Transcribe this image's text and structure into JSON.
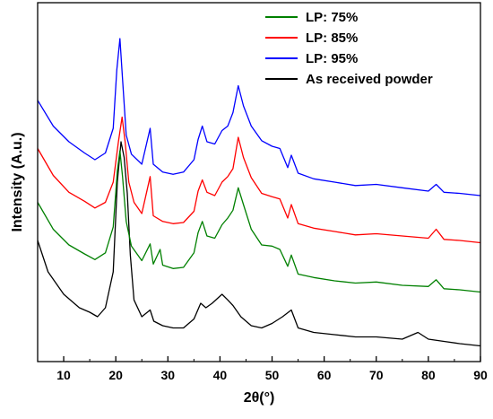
{
  "chart_data": {
    "type": "line",
    "title": "",
    "xlabel": "2θ(°)",
    "ylabel": "Intensity (A.u.)",
    "xlim": [
      5,
      90
    ],
    "xticks": [
      10,
      20,
      30,
      40,
      50,
      60,
      70,
      80,
      90
    ],
    "y_tick_labels_shown": false,
    "grid": false,
    "legend_position": "top-right",
    "series": [
      {
        "name": "LP: 75%",
        "color": "#008000",
        "x": [
          5,
          8,
          11,
          14,
          16,
          18,
          19.5,
          20.3,
          20.8,
          21.3,
          22,
          23,
          25,
          26.6,
          27.2,
          28.5,
          29,
          31,
          33,
          35,
          35.8,
          36.6,
          37.5,
          39,
          40.4,
          41.5,
          42.5,
          43.5,
          44.5,
          46,
          48,
          50,
          51.5,
          53,
          53.7,
          55,
          58,
          62,
          66,
          70,
          75,
          80,
          81.5,
          83,
          86,
          90
        ],
        "y": [
          142,
          118,
          104,
          96,
          91,
          97,
          120,
          170,
          188,
          165,
          125,
          103,
          90,
          105,
          87,
          100,
          86,
          83,
          84,
          97,
          115,
          125,
          112,
          110,
          122,
          128,
          135,
          155,
          140,
          118,
          104,
          103,
          100,
          85,
          95,
          78,
          75,
          72,
          70,
          71,
          68,
          67,
          73,
          65,
          64,
          62
        ]
      },
      {
        "name": "LP: 85%",
        "color": "#ff0000",
        "x": [
          5,
          8,
          11,
          14,
          16,
          18,
          19.5,
          20.5,
          21.2,
          21.8,
          22.5,
          23.5,
          25,
          26.6,
          27.2,
          29,
          31,
          33,
          35,
          35.8,
          36.6,
          37.5,
          39,
          40.4,
          41.5,
          42.5,
          43.5,
          44.5,
          46,
          48,
          50,
          51.5,
          53,
          53.7,
          55,
          58,
          62,
          66,
          70,
          75,
          80,
          81.5,
          83,
          86,
          90
        ],
        "y": [
          190,
          166,
          151,
          143,
          137,
          142,
          160,
          196,
          218,
          196,
          160,
          142,
          132,
          165,
          130,
          125,
          123,
          124,
          134,
          152,
          162,
          151,
          148,
          160,
          165,
          172,
          200,
          182,
          164,
          150,
          147,
          145,
          128,
          140,
          123,
          119,
          116,
          113,
          114,
          112,
          110,
          118,
          109,
          108,
          106
        ]
      },
      {
        "name": "LP: 95%",
        "color": "#0000ff",
        "x": [
          5,
          8,
          11,
          14,
          16,
          18,
          19.5,
          20.2,
          20.8,
          21.3,
          22,
          23,
          25,
          26.6,
          27.2,
          29,
          31,
          33,
          35,
          35.8,
          36.6,
          37.5,
          39,
          40.4,
          41.5,
          42.5,
          43.5,
          44.5,
          46,
          48,
          50,
          51.5,
          53,
          53.7,
          55,
          58,
          62,
          66,
          70,
          75,
          80,
          81.5,
          83,
          86,
          90
        ],
        "y": [
          233,
          210,
          196,
          186,
          180,
          186,
          208,
          260,
          288,
          252,
          202,
          185,
          176,
          208,
          176,
          169,
          167,
          169,
          180,
          198,
          210,
          196,
          194,
          206,
          210,
          222,
          246,
          228,
          210,
          197,
          192,
          190,
          173,
          184,
          168,
          163,
          160,
          157,
          158,
          155,
          152,
          158,
          151,
          150,
          148
        ]
      },
      {
        "name": "As received powder",
        "color": "#000000",
        "x": [
          5,
          7,
          10,
          13,
          15,
          16.5,
          18,
          19.5,
          20.3,
          21,
          21.6,
          22.2,
          22.8,
          23.5,
          25,
          26.6,
          27.3,
          29,
          31,
          33,
          35,
          36.3,
          37.3,
          38.5,
          40.4,
          41.5,
          42.5,
          44,
          46,
          48,
          50,
          52,
          53.7,
          55,
          58,
          62,
          66,
          70,
          75,
          78,
          80,
          83,
          86,
          90
        ],
        "y": [
          108,
          80,
          60,
          48,
          44,
          40,
          48,
          80,
          160,
          196,
          182,
          150,
          95,
          55,
          40,
          46,
          36,
          32,
          30,
          30,
          38,
          52,
          48,
          52,
          60,
          55,
          50,
          40,
          32,
          30,
          34,
          40,
          46,
          30,
          26,
          24,
          22,
          22,
          20,
          26,
          20,
          18,
          16,
          14
        ]
      }
    ]
  }
}
